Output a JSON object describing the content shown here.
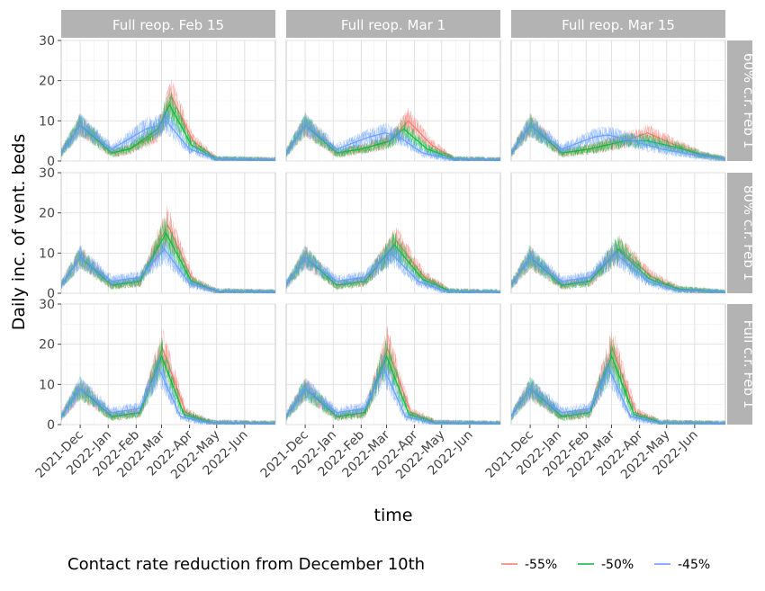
{
  "chart_data": {
    "type": "line",
    "facet_columns": [
      "Full reop. Feb 15",
      "Full reop. Mar 1",
      "Full reop. Mar 15"
    ],
    "facet_rows": [
      "60% c.r. Feb 1",
      "80% c.r. Feb 1",
      "Full c.r. Feb 1"
    ],
    "xlabel": "time",
    "ylabel": "Daily inc. of vent. beds",
    "x_ticks": [
      "2021-Dec",
      "2022-Jan",
      "2022-Feb",
      "2022-Mar",
      "2022-Apr",
      "2022-May",
      "2022-Jun"
    ],
    "xlim": [
      "2021-11-10",
      "2022-07-05"
    ],
    "y_ticks": [
      0,
      10,
      20,
      30
    ],
    "ylim": [
      0,
      30
    ],
    "grid": true,
    "legend": {
      "title": "Contact rate reduction from December 10th",
      "placement": "bottom",
      "entries": [
        {
          "label": "-55%",
          "color": "#f8766d"
        },
        {
          "label": "-50%",
          "color": "#00ba38"
        },
        {
          "label": "-45%",
          "color": "#619cff"
        }
      ]
    },
    "panels": [
      {
        "row": 0,
        "col": 0,
        "series": [
          {
            "name": "-55%",
            "x": [
              "2021-11-10",
              "2021-12-01",
              "2022-01-05",
              "2022-01-25",
              "2022-02-25",
              "2022-03-12",
              "2022-04-05",
              "2022-05-01",
              "2022-07-05"
            ],
            "y": [
              2,
              9,
              2,
              3,
              7,
              16,
              5,
              0.5,
              0.3
            ]
          },
          {
            "name": "-50%",
            "x": [
              "2021-11-10",
              "2021-12-01",
              "2022-01-05",
              "2022-01-25",
              "2022-02-25",
              "2022-03-10",
              "2022-04-03",
              "2022-05-01",
              "2022-07-05"
            ],
            "y": [
              2,
              9,
              2,
              3,
              8,
              14,
              4,
              0.5,
              0.3
            ]
          },
          {
            "name": "-45%",
            "x": [
              "2021-11-10",
              "2021-12-01",
              "2022-01-05",
              "2022-02-12",
              "2022-02-28",
              "2022-03-06",
              "2022-04-01",
              "2022-05-01",
              "2022-07-05"
            ],
            "y": [
              2,
              9,
              3,
              8,
              9,
              10,
              3,
              0.5,
              0.3
            ]
          }
        ]
      },
      {
        "row": 0,
        "col": 1,
        "series": [
          {
            "name": "-55%",
            "x": [
              "2021-11-10",
              "2021-12-01",
              "2022-01-05",
              "2022-02-01",
              "2022-03-05",
              "2022-03-25",
              "2022-04-20",
              "2022-05-15",
              "2022-07-05"
            ],
            "y": [
              2,
              9,
              2,
              3,
              5,
              10,
              4,
              0.5,
              0.3
            ]
          },
          {
            "name": "-50%",
            "x": [
              "2021-11-10",
              "2021-12-01",
              "2022-01-05",
              "2022-02-01",
              "2022-03-05",
              "2022-03-20",
              "2022-04-15",
              "2022-05-15",
              "2022-07-05"
            ],
            "y": [
              2,
              9,
              2,
              3,
              5,
              8,
              3,
              0.5,
              0.3
            ]
          },
          {
            "name": "-45%",
            "x": [
              "2021-11-10",
              "2021-12-01",
              "2022-01-05",
              "2022-02-10",
              "2022-02-28",
              "2022-03-15",
              "2022-04-10",
              "2022-05-10",
              "2022-07-05"
            ],
            "y": [
              2,
              9,
              3,
              6,
              7,
              6,
              2,
              0.5,
              0.3
            ]
          }
        ]
      },
      {
        "row": 0,
        "col": 2,
        "series": [
          {
            "name": "-55%",
            "x": [
              "2021-11-10",
              "2021-12-01",
              "2022-01-05",
              "2022-02-05",
              "2022-03-15",
              "2022-04-10",
              "2022-05-10",
              "2022-06-10",
              "2022-07-05"
            ],
            "y": [
              2,
              9,
              2,
              3,
              5,
              7,
              4,
              1.5,
              0.5
            ]
          },
          {
            "name": "-50%",
            "x": [
              "2021-11-10",
              "2021-12-01",
              "2022-01-05",
              "2022-02-05",
              "2022-03-15",
              "2022-04-10",
              "2022-05-10",
              "2022-06-10",
              "2022-07-05"
            ],
            "y": [
              2,
              9,
              2,
              3,
              5,
              5,
              3.5,
              1.5,
              0.5
            ]
          },
          {
            "name": "-45%",
            "x": [
              "2021-11-10",
              "2021-12-01",
              "2022-01-05",
              "2022-02-10",
              "2022-02-25",
              "2022-03-25",
              "2022-04-25",
              "2022-06-01",
              "2022-07-05"
            ],
            "y": [
              2,
              9,
              3,
              6,
              6.5,
              5,
              3,
              1.5,
              0.5
            ]
          }
        ]
      },
      {
        "row": 1,
        "col": 0,
        "series": [
          {
            "name": "-55%",
            "x": [
              "2021-11-10",
              "2021-12-01",
              "2022-01-05",
              "2022-02-05",
              "2022-03-08",
              "2022-04-05",
              "2022-05-01",
              "2022-07-05"
            ],
            "y": [
              2,
              9,
              2,
              3,
              17,
              3,
              0.5,
              0.3
            ]
          },
          {
            "name": "-50%",
            "x": [
              "2021-11-10",
              "2021-12-01",
              "2022-01-05",
              "2022-02-05",
              "2022-03-06",
              "2022-04-03",
              "2022-05-01",
              "2022-07-05"
            ],
            "y": [
              2,
              9,
              2,
              3,
              15,
              3,
              0.5,
              0.3
            ]
          },
          {
            "name": "-45%",
            "x": [
              "2021-11-10",
              "2021-12-01",
              "2022-01-05",
              "2022-02-05",
              "2022-03-04",
              "2022-04-01",
              "2022-05-01",
              "2022-07-05"
            ],
            "y": [
              2,
              9,
              3,
              4,
              11,
              2.5,
              0.5,
              0.3
            ]
          }
        ]
      },
      {
        "row": 1,
        "col": 1,
        "series": [
          {
            "name": "-55%",
            "x": [
              "2021-11-10",
              "2021-12-01",
              "2022-01-05",
              "2022-02-05",
              "2022-03-12",
              "2022-04-12",
              "2022-05-10",
              "2022-07-05"
            ],
            "y": [
              2,
              9,
              2,
              3,
              13,
              4,
              0.5,
              0.3
            ]
          },
          {
            "name": "-50%",
            "x": [
              "2021-11-10",
              "2021-12-01",
              "2022-01-05",
              "2022-02-05",
              "2022-03-10",
              "2022-04-10",
              "2022-05-10",
              "2022-07-05"
            ],
            "y": [
              2,
              9,
              2,
              3,
              12,
              3.5,
              0.5,
              0.3
            ]
          },
          {
            "name": "-45%",
            "x": [
              "2021-11-10",
              "2021-12-01",
              "2022-01-05",
              "2022-02-05",
              "2022-03-06",
              "2022-04-05",
              "2022-05-05",
              "2022-07-05"
            ],
            "y": [
              2,
              9,
              3,
              4,
              10,
              3,
              0.5,
              0.3
            ]
          }
        ]
      },
      {
        "row": 1,
        "col": 2,
        "series": [
          {
            "name": "-55%",
            "x": [
              "2021-11-10",
              "2021-12-01",
              "2022-01-05",
              "2022-02-05",
              "2022-03-10",
              "2022-04-15",
              "2022-05-15",
              "2022-07-05"
            ],
            "y": [
              2,
              9,
              2,
              3,
              11,
              4,
              1,
              0.3
            ]
          },
          {
            "name": "-50%",
            "x": [
              "2021-11-10",
              "2021-12-01",
              "2022-01-05",
              "2022-02-05",
              "2022-03-08",
              "2022-04-12",
              "2022-05-15",
              "2022-07-05"
            ],
            "y": [
              2,
              9,
              2,
              3,
              11,
              3.5,
              1,
              0.3
            ]
          },
          {
            "name": "-45%",
            "x": [
              "2021-11-10",
              "2021-12-01",
              "2022-01-05",
              "2022-02-05",
              "2022-03-05",
              "2022-04-10",
              "2022-05-10",
              "2022-07-05"
            ],
            "y": [
              2,
              9,
              3,
              4,
              10,
              3,
              0.8,
              0.3
            ]
          }
        ]
      },
      {
        "row": 2,
        "col": 0,
        "series": [
          {
            "name": "-55%",
            "x": [
              "2021-11-10",
              "2021-12-01",
              "2022-01-05",
              "2022-02-05",
              "2022-03-02",
              "2022-03-28",
              "2022-04-25",
              "2022-07-05"
            ],
            "y": [
              2,
              9,
              2,
              3,
              19,
              3,
              0.5,
              0.3
            ]
          },
          {
            "name": "-50%",
            "x": [
              "2021-11-10",
              "2021-12-01",
              "2022-01-05",
              "2022-02-05",
              "2022-03-01",
              "2022-03-26",
              "2022-04-25",
              "2022-07-05"
            ],
            "y": [
              2,
              9,
              2,
              3,
              17,
              2.5,
              0.5,
              0.3
            ]
          },
          {
            "name": "-45%",
            "x": [
              "2021-11-10",
              "2021-12-01",
              "2022-01-05",
              "2022-02-05",
              "2022-02-26",
              "2022-03-22",
              "2022-04-20",
              "2022-07-05"
            ],
            "y": [
              2,
              9,
              3,
              4,
              14,
              2,
              0.5,
              0.3
            ]
          }
        ]
      },
      {
        "row": 2,
        "col": 1,
        "series": [
          {
            "name": "-55%",
            "x": [
              "2021-11-10",
              "2021-12-01",
              "2022-01-05",
              "2022-02-05",
              "2022-03-02",
              "2022-03-28",
              "2022-04-25",
              "2022-07-05"
            ],
            "y": [
              2,
              9,
              2,
              3,
              19,
              3,
              0.5,
              0.3
            ]
          },
          {
            "name": "-50%",
            "x": [
              "2021-11-10",
              "2021-12-01",
              "2022-01-05",
              "2022-02-05",
              "2022-03-01",
              "2022-03-26",
              "2022-04-25",
              "2022-07-05"
            ],
            "y": [
              2,
              9,
              2,
              3,
              17,
              2.5,
              0.5,
              0.3
            ]
          },
          {
            "name": "-45%",
            "x": [
              "2021-11-10",
              "2021-12-01",
              "2022-01-05",
              "2022-02-05",
              "2022-02-26",
              "2022-03-22",
              "2022-04-20",
              "2022-07-05"
            ],
            "y": [
              2,
              9,
              3,
              4,
              14,
              2,
              0.5,
              0.3
            ]
          }
        ]
      },
      {
        "row": 2,
        "col": 2,
        "series": [
          {
            "name": "-55%",
            "x": [
              "2021-11-10",
              "2021-12-01",
              "2022-01-05",
              "2022-02-05",
              "2022-03-02",
              "2022-03-28",
              "2022-04-25",
              "2022-07-05"
            ],
            "y": [
              2,
              9,
              2,
              3,
              19,
              3,
              0.5,
              0.3
            ]
          },
          {
            "name": "-50%",
            "x": [
              "2021-11-10",
              "2021-12-01",
              "2022-01-05",
              "2022-02-05",
              "2022-03-01",
              "2022-03-26",
              "2022-04-25",
              "2022-07-05"
            ],
            "y": [
              2,
              9,
              2,
              3,
              17,
              2.5,
              0.5,
              0.3
            ]
          },
          {
            "name": "-45%",
            "x": [
              "2021-11-10",
              "2021-12-01",
              "2022-01-05",
              "2022-02-05",
              "2022-02-26",
              "2022-03-22",
              "2022-04-20",
              "2022-07-05"
            ],
            "y": [
              2,
              9,
              3,
              4,
              14,
              2,
              0.5,
              0.3
            ]
          }
        ]
      }
    ]
  }
}
